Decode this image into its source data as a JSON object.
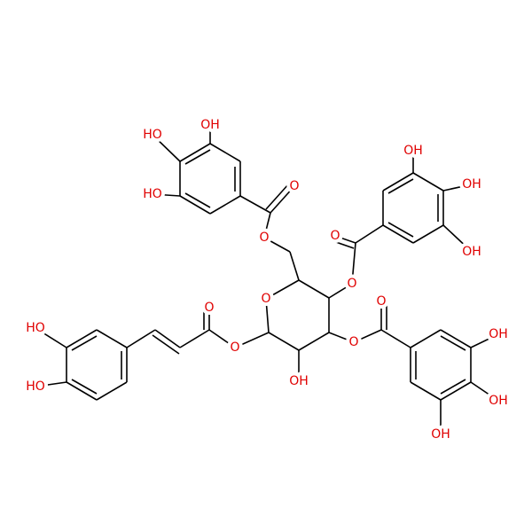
{
  "labels": [
    "OH",
    "HO",
    "HO",
    "O",
    "O",
    "OH",
    "OH",
    "OH",
    "O",
    "O",
    "O",
    "O",
    "HO",
    "O",
    "HO",
    "OH",
    "O",
    "O",
    "OH",
    "OH",
    "OH"
  ]
}
